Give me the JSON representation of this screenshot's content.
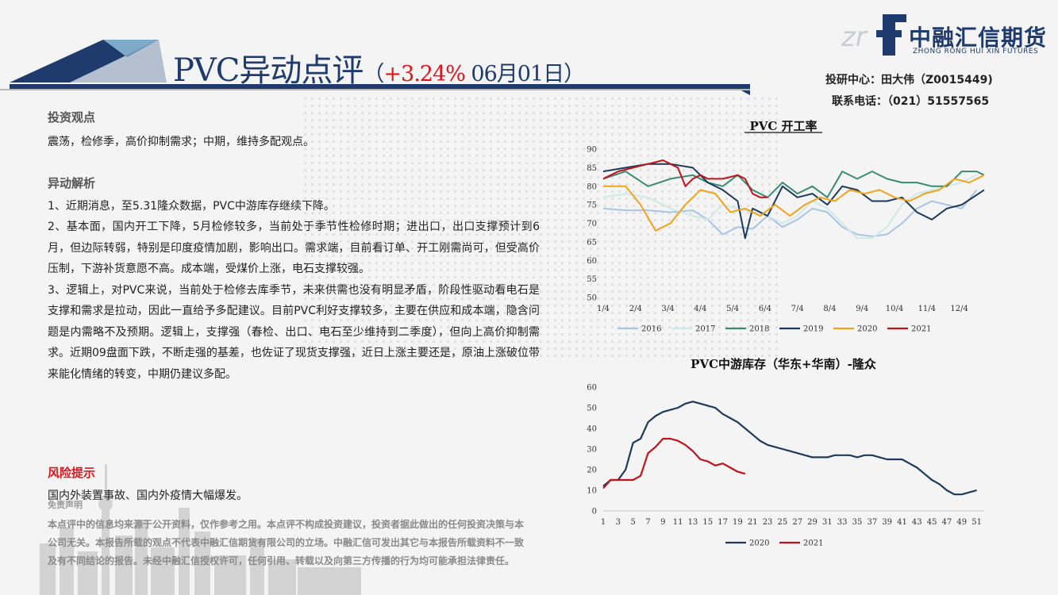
{
  "header": {
    "title_main": "PVC异动点评",
    "title_open": "（",
    "title_pct": "+3.24%",
    "title_date": " 06月01日）",
    "logo_cn": "中融汇信期货",
    "logo_en": "ZHONG RONG HUI XIN FUTURES",
    "contact_line1": "投研中心：田大伟（Z0015449)",
    "contact_line2": "联系电话：（021）51557565"
  },
  "body": {
    "view_heading": "投资观点",
    "view_text": "震荡，检修季，高价抑制需求；中期，维持多配观点。",
    "analysis_heading": "异动解析",
    "p1": "1、近期消息，至5.31隆众数据，PVC中游库存继续下降。",
    "p2": "2、基本面，国内开工下降，5月检修较多，当前处于季节性检修时期；进出口，出口支撑预计到6月，但边际转弱，特别是印度疫情加剧，影响出口。需求端，目前看订单、开工刚需尚可，但受高价压制，下游补货意愿不高。成本端，受煤价上涨，电石支撑较强。",
    "p3": "3、逻辑上，对PVC来说，当前处于检修去库季节，未来供需也没有明显矛盾，阶段性驱动看电石是支撑和需求是拉动，因此一直给予多配建议。目前PVC利好支撑较多，主要在供应和成本端，隐含问题是内需略不及预期。逻辑上，支撑强（春检、出口、电石至少维持到二季度），但向上高价抑制需求。近期09盘面下跌，不断走强的基差，也佐证了现货支撑强，近日上涨主要还是，原油上涨破位带来能化情绪的转变，中期仍建议多配。",
    "risk_heading": "风险提示",
    "risk_text": "国内外装置事故、国内外疫情大幅爆发。",
    "disclaimer_heading": "免责声明",
    "disclaimer_text": "本点评中的信息均来源于公开资料，仅作参考之用。本点评不构成投资建议，投资者据此做出的任何投资决策与本公司无关。本报告所载的观点不代表中融汇信期货有限公司的立场。中融汇信可发出其它与本报告所载资料不一致及有不同结论的报告。未经中融汇信授权许可，任何引用、转载以及向第三方传播的行为均可能承担法律责任。"
  },
  "chart_data": [
    {
      "type": "line",
      "title": "PVC 开工率",
      "xlabel": "",
      "ylabel": "",
      "ylim": [
        50,
        90
      ],
      "yticks": [
        50,
        55,
        60,
        65,
        70,
        75,
        80,
        85,
        90
      ],
      "x_tick_labels": [
        "1/4",
        "2/4",
        "3/4",
        "4/4",
        "5/4",
        "6/4",
        "7/4",
        "8/4",
        "9/4",
        "10/4",
        "11/4",
        "12/4"
      ],
      "x_range_weeks": [
        0,
        51
      ],
      "legend_position": "bottom",
      "series": [
        {
          "name": "2016",
          "color": "#a9c4e4",
          "x": [
            0,
            3,
            6,
            9,
            12,
            14,
            16,
            18,
            20,
            22,
            24,
            26,
            28,
            30,
            32,
            34,
            36,
            38,
            40,
            42,
            44,
            46,
            48,
            50
          ],
          "values": [
            74,
            73.5,
            73.5,
            73,
            73.5,
            71,
            67,
            69,
            68.5,
            72,
            69,
            71,
            74,
            73,
            69,
            67,
            66.5,
            67,
            70,
            74,
            76,
            75,
            74,
            79
          ]
        },
        {
          "name": "2017",
          "color": "#cfeae6",
          "x": [
            0,
            3,
            6,
            9,
            12,
            14,
            16,
            18,
            20,
            22,
            24,
            26,
            28,
            30,
            32,
            34,
            36,
            38,
            40,
            42,
            44,
            46,
            48,
            50
          ],
          "values": [
            77,
            78,
            77,
            74,
            72,
            71,
            75,
            74,
            73,
            72,
            70,
            72,
            76,
            74,
            70,
            66,
            66,
            69,
            75,
            78,
            79,
            80,
            81,
            83
          ]
        },
        {
          "name": "2018",
          "color": "#3a8a74",
          "x": [
            0,
            3,
            6,
            9,
            12,
            14,
            16,
            18,
            20,
            22,
            24,
            26,
            28,
            30,
            32,
            34,
            36,
            38,
            40,
            42,
            44,
            46,
            48,
            50,
            51
          ],
          "values": [
            82,
            84,
            80,
            82,
            83,
            81,
            80,
            83,
            79,
            77,
            81,
            78,
            80,
            77,
            84,
            82,
            84,
            82,
            81,
            81,
            80,
            80,
            84,
            84,
            83
          ]
        },
        {
          "name": "2019",
          "color": "#1d3a5c",
          "x": [
            0,
            3,
            6,
            9,
            12,
            14,
            16,
            18,
            19,
            20,
            22,
            24,
            26,
            28,
            30,
            32,
            34,
            36,
            38,
            40,
            42,
            44,
            46,
            48,
            51
          ],
          "values": [
            84,
            85,
            86,
            86,
            85,
            81,
            79,
            76,
            66,
            74,
            72,
            80,
            77,
            78,
            75,
            80,
            79,
            76,
            76,
            77,
            73,
            71,
            74,
            75,
            79
          ]
        },
        {
          "name": "2020",
          "color": "#f1a31b",
          "x": [
            0,
            3,
            5,
            7,
            9,
            11,
            13,
            15,
            17,
            19,
            21,
            23,
            25,
            27,
            29,
            31,
            33,
            35,
            37,
            39,
            41,
            43,
            45,
            47,
            49,
            51
          ],
          "values": [
            80,
            80,
            75,
            68,
            70,
            75,
            79,
            78,
            73,
            74,
            72,
            75,
            72,
            75,
            77,
            76,
            79,
            78,
            79,
            77,
            76,
            78,
            79,
            82,
            81,
            83
          ]
        },
        {
          "name": "2021",
          "color": "#c0141b",
          "x": [
            0,
            2,
            4,
            6,
            8,
            9,
            10,
            11,
            12,
            13,
            14,
            15,
            16,
            17,
            18,
            19,
            20,
            21,
            22
          ],
          "values": [
            82,
            84,
            85,
            86,
            87,
            86,
            85,
            80,
            82,
            83,
            82,
            82,
            82,
            82.5,
            83,
            82,
            78,
            77,
            77
          ]
        }
      ]
    },
    {
      "type": "line",
      "title": "PVC中游库存（华东+华南）-隆众",
      "xlabel": "",
      "ylabel": "",
      "ylim": [
        0,
        60
      ],
      "yticks": [
        0,
        10,
        20,
        30,
        40,
        50,
        60
      ],
      "x_tick_labels": [
        "1",
        "3",
        "5",
        "7",
        "9",
        "11",
        "13",
        "15",
        "17",
        "19",
        "21",
        "23",
        "25",
        "27",
        "29",
        "31",
        "33",
        "35",
        "37",
        "39",
        "41",
        "43",
        "45",
        "47",
        "49",
        "51"
      ],
      "x_range_weeks": [
        1,
        52
      ],
      "legend_position": "bottom",
      "series": [
        {
          "name": "2020",
          "color": "#1d3a5c",
          "x": [
            1,
            2,
            3,
            4,
            5,
            6,
            7,
            8,
            9,
            10,
            11,
            12,
            13,
            14,
            15,
            16,
            17,
            18,
            19,
            20,
            21,
            22,
            23,
            24,
            25,
            26,
            27,
            28,
            29,
            30,
            31,
            32,
            33,
            34,
            35,
            36,
            37,
            38,
            39,
            40,
            41,
            42,
            43,
            44,
            45,
            46,
            47,
            48,
            49,
            50,
            51
          ],
          "values": [
            12,
            15,
            15,
            20,
            33,
            35,
            43,
            46,
            48,
            49,
            50,
            52,
            53,
            52,
            51,
            50,
            47,
            45,
            43,
            40,
            37,
            34,
            32,
            31,
            30,
            29,
            28,
            27,
            26,
            26,
            26,
            27,
            27,
            27,
            26,
            27,
            27,
            26,
            25,
            25,
            25,
            23,
            21,
            18,
            15,
            13,
            10,
            8,
            8,
            9,
            10
          ]
        },
        {
          "name": "2021",
          "color": "#c0141b",
          "x": [
            1,
            2,
            3,
            4,
            5,
            6,
            7,
            8,
            9,
            10,
            11,
            12,
            13,
            14,
            15,
            16,
            17,
            18,
            19,
            20
          ],
          "values": [
            11,
            15,
            15,
            15,
            15,
            17,
            28,
            31,
            35,
            35,
            34,
            32,
            29,
            25,
            24,
            22,
            23,
            21,
            19,
            18
          ]
        }
      ]
    }
  ]
}
